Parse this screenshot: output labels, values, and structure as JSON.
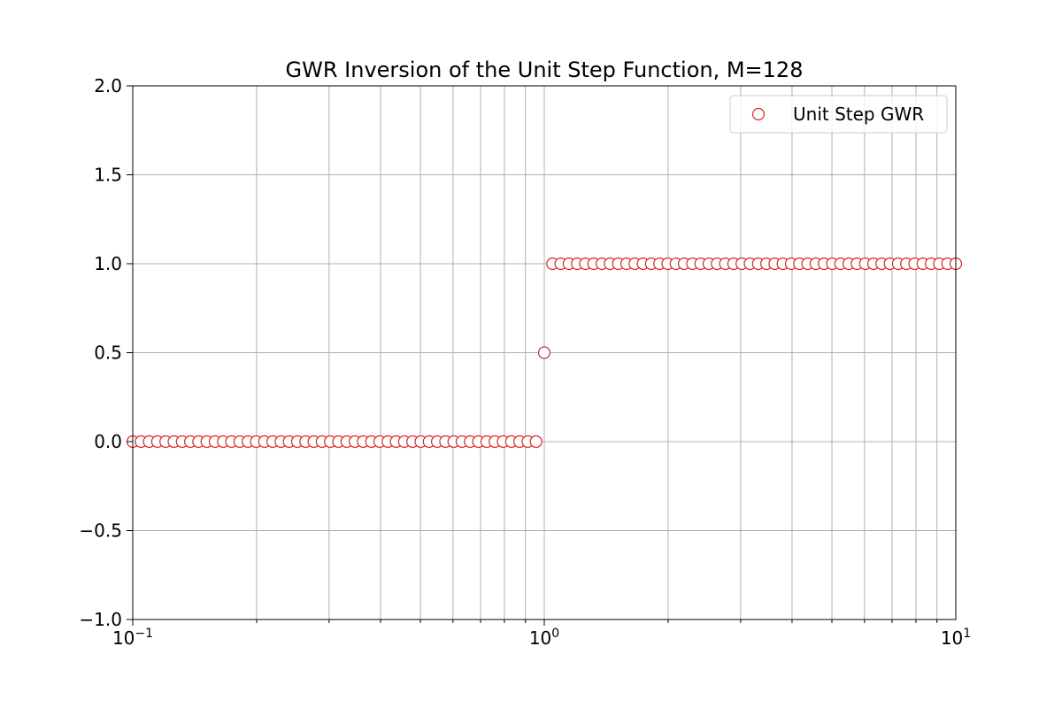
{
  "chart_data": {
    "type": "scatter",
    "title": "GWR Inversion of the Unit Step Function, M=128",
    "xlabel": "",
    "ylabel": "",
    "xscale": "log",
    "xlim": [
      0.1,
      10
    ],
    "ylim": [
      -1.0,
      2.0
    ],
    "grid": "both (major and minor on x)",
    "legend_position": "top-right",
    "x_tick_labels": [
      {
        "base": "10",
        "exp": "−1",
        "value": 0.1
      },
      {
        "base": "10",
        "exp": "0",
        "value": 1
      },
      {
        "base": "10",
        "exp": "1",
        "value": 10
      }
    ],
    "y_ticks": [
      -1.0,
      -0.5,
      0.0,
      0.5,
      1.0,
      1.5,
      2.0
    ],
    "y_tick_labels": [
      "−1.0",
      "−0.5",
      "0.0",
      "0.5",
      "1.0",
      "1.5",
      "2.0"
    ],
    "marker_color": "#d62728",
    "series": [
      {
        "name": "Unit Step GWR",
        "marker": "open-circle",
        "points": {
          "x_log10_start": -1.0,
          "x_log10_step": 0.02,
          "count": 101,
          "y_values": [
            0,
            0,
            0,
            0,
            0,
            0,
            0,
            0,
            0,
            0,
            0,
            0,
            0,
            0,
            0,
            0,
            0,
            0,
            0,
            0,
            0,
            0,
            0,
            0,
            0,
            0,
            0,
            0,
            0,
            0,
            0,
            0,
            0,
            0,
            0,
            0,
            0,
            0,
            0,
            0,
            0,
            0,
            0,
            0,
            0,
            0,
            0,
            0,
            0,
            0,
            0.5,
            1,
            1,
            1,
            1,
            1,
            1,
            1,
            1,
            1,
            1,
            1,
            1,
            1,
            1,
            1,
            1,
            1,
            1,
            1,
            1,
            1,
            1,
            1,
            1,
            1,
            1,
            1,
            1,
            1,
            1,
            1,
            1,
            1,
            1,
            1,
            1,
            1,
            1,
            1,
            1,
            1,
            1,
            1,
            1,
            1,
            1,
            1,
            1,
            1,
            1
          ]
        }
      }
    ]
  }
}
